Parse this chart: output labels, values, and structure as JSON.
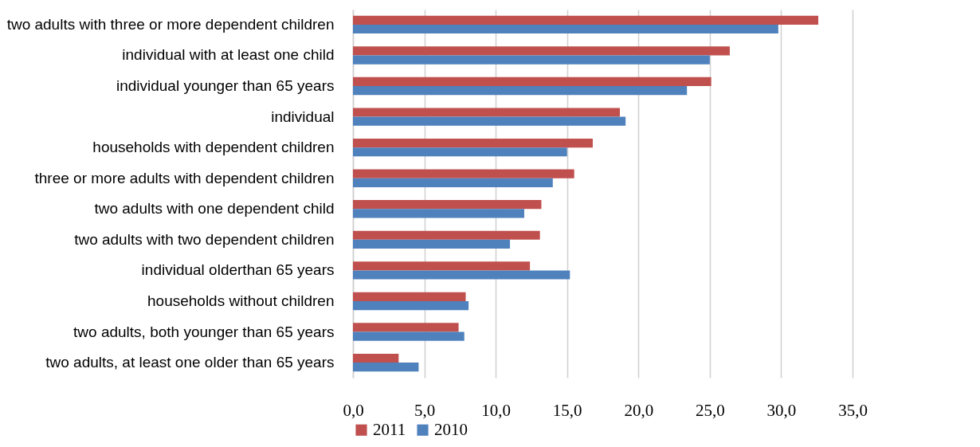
{
  "chart_data": {
    "type": "bar",
    "orientation": "horizontal",
    "categories": [
      "two adults with three or more dependent children",
      "individual with at least one child",
      "individual younger than 65 years",
      "individual",
      "households with dependent children",
      "three or more adults with dependent children",
      "two adults with one dependent child",
      "two adults with two dependent children",
      "individual olderthan 65 years",
      "households without children",
      "two adults, both younger than 65 years",
      "two adults, at least one older than 65 years"
    ],
    "series": [
      {
        "name": "2011",
        "color": "#c0504d",
        "values": [
          32.6,
          26.4,
          25.1,
          18.7,
          16.8,
          15.5,
          13.2,
          13.1,
          12.4,
          7.9,
          7.4,
          3.2
        ]
      },
      {
        "name": "2010",
        "color": "#4f81bd",
        "values": [
          29.8,
          25.0,
          23.4,
          19.1,
          15.0,
          14.0,
          12.0,
          11.0,
          15.2,
          8.1,
          7.8,
          4.6
        ]
      }
    ],
    "xlim": [
      0,
      35
    ],
    "xticks": [
      {
        "value": 0,
        "label": "0,0"
      },
      {
        "value": 5,
        "label": "5,0"
      },
      {
        "value": 10,
        "label": "10,0"
      },
      {
        "value": 15,
        "label": "15,0"
      },
      {
        "value": 20,
        "label": "20,0"
      },
      {
        "value": 25,
        "label": "25,0"
      },
      {
        "value": 30,
        "label": "30,0"
      },
      {
        "value": 35,
        "label": "35,0"
      }
    ],
    "grid": "x",
    "legend": "bottom"
  }
}
